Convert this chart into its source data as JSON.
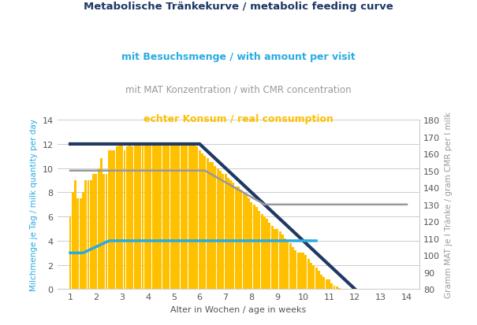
{
  "title_line1": "Metabolische Tränkekurve / metabolic feeding curve",
  "title_line2": "mit Besuchsmenge / with amount per visit",
  "title_line3": "mit MAT Konzentration / with CMR concentration",
  "title_line4": "echter Konsum / real consumption",
  "title_line1_color": "#1f3864",
  "title_line2_color": "#29ABE2",
  "title_line3_color": "#999999",
  "title_line4_color": "#FFC000",
  "xlabel": "Alter in Wochen / age in weeks",
  "ylabel_left": "Milchmenge je Tag / milk quantity per day",
  "ylabel_right": "Gramm MAT je l Tränke / gram CMR per l milk",
  "xlim": [
    0.5,
    14.5
  ],
  "ylim_left": [
    0,
    14
  ],
  "ylim_right": [
    80,
    180
  ],
  "xticks": [
    1,
    2,
    3,
    4,
    5,
    6,
    7,
    8,
    9,
    10,
    11,
    12,
    13,
    14
  ],
  "yticks_left": [
    0,
    2,
    4,
    6,
    8,
    10,
    12,
    14
  ],
  "yticks_right": [
    80,
    90,
    100,
    110,
    120,
    130,
    140,
    150,
    160,
    170,
    180
  ],
  "bar_color": "#FFC000",
  "bar_width": 0.09,
  "bars": [
    [
      1.0,
      6.0
    ],
    [
      1.1,
      8.0
    ],
    [
      1.2,
      9.0
    ],
    [
      1.3,
      7.5
    ],
    [
      1.4,
      7.5
    ],
    [
      1.5,
      8.0
    ],
    [
      1.6,
      9.0
    ],
    [
      1.7,
      9.0
    ],
    [
      1.8,
      9.0
    ],
    [
      1.9,
      9.5
    ],
    [
      2.0,
      9.5
    ],
    [
      2.1,
      10.0
    ],
    [
      2.2,
      10.8
    ],
    [
      2.3,
      9.5
    ],
    [
      2.4,
      9.5
    ],
    [
      2.5,
      11.5
    ],
    [
      2.6,
      11.5
    ],
    [
      2.7,
      11.5
    ],
    [
      2.8,
      11.8
    ],
    [
      2.9,
      12.0
    ],
    [
      3.0,
      12.0
    ],
    [
      3.1,
      11.5
    ],
    [
      3.2,
      11.8
    ],
    [
      3.3,
      12.0
    ],
    [
      3.4,
      11.8
    ],
    [
      3.5,
      12.0
    ],
    [
      3.6,
      12.0
    ],
    [
      3.7,
      12.0
    ],
    [
      3.8,
      12.0
    ],
    [
      3.9,
      12.0
    ],
    [
      4.0,
      12.0
    ],
    [
      4.1,
      12.0
    ],
    [
      4.2,
      12.0
    ],
    [
      4.3,
      12.0
    ],
    [
      4.4,
      12.0
    ],
    [
      4.5,
      12.0
    ],
    [
      4.6,
      12.0
    ],
    [
      4.7,
      12.0
    ],
    [
      4.8,
      12.0
    ],
    [
      4.9,
      12.0
    ],
    [
      5.0,
      12.0
    ],
    [
      5.1,
      12.0
    ],
    [
      5.2,
      12.0
    ],
    [
      5.3,
      12.0
    ],
    [
      5.4,
      12.0
    ],
    [
      5.5,
      12.0
    ],
    [
      5.6,
      12.0
    ],
    [
      5.7,
      12.0
    ],
    [
      5.8,
      12.0
    ],
    [
      5.9,
      11.8
    ],
    [
      6.0,
      11.5
    ],
    [
      6.1,
      11.2
    ],
    [
      6.2,
      11.0
    ],
    [
      6.3,
      10.8
    ],
    [
      6.4,
      10.5
    ],
    [
      6.5,
      10.5
    ],
    [
      6.6,
      10.2
    ],
    [
      6.7,
      10.0
    ],
    [
      6.8,
      9.8
    ],
    [
      6.9,
      9.5
    ],
    [
      7.0,
      9.5
    ],
    [
      7.1,
      9.2
    ],
    [
      7.2,
      9.0
    ],
    [
      7.3,
      8.8
    ],
    [
      7.4,
      8.5
    ],
    [
      7.5,
      8.5
    ],
    [
      7.6,
      8.2
    ],
    [
      7.7,
      8.0
    ],
    [
      7.8,
      7.8
    ],
    [
      7.9,
      7.5
    ],
    [
      8.0,
      7.2
    ],
    [
      8.1,
      7.0
    ],
    [
      8.2,
      6.8
    ],
    [
      8.3,
      6.5
    ],
    [
      8.4,
      6.2
    ],
    [
      8.5,
      6.0
    ],
    [
      8.6,
      5.8
    ],
    [
      8.7,
      5.5
    ],
    [
      8.8,
      5.2
    ],
    [
      8.9,
      5.0
    ],
    [
      9.0,
      5.0
    ],
    [
      9.1,
      4.8
    ],
    [
      9.2,
      4.5
    ],
    [
      9.3,
      4.2
    ],
    [
      9.4,
      4.0
    ],
    [
      9.5,
      3.8
    ],
    [
      9.6,
      3.5
    ],
    [
      9.7,
      3.2
    ],
    [
      9.8,
      3.0
    ],
    [
      9.9,
      3.0
    ],
    [
      10.0,
      3.0
    ],
    [
      10.1,
      2.8
    ],
    [
      10.2,
      2.5
    ],
    [
      10.3,
      2.2
    ],
    [
      10.4,
      2.0
    ],
    [
      10.5,
      1.8
    ],
    [
      10.6,
      1.5
    ],
    [
      10.7,
      1.2
    ],
    [
      10.8,
      1.0
    ],
    [
      10.9,
      0.8
    ],
    [
      11.0,
      0.8
    ],
    [
      11.1,
      0.5
    ],
    [
      11.2,
      0.3
    ],
    [
      11.3,
      0.2
    ],
    [
      11.4,
      0.1
    ]
  ],
  "dark_blue_line_x": [
    1.0,
    6.0,
    12.0
  ],
  "dark_blue_line_y": [
    12.0,
    12.0,
    0.0
  ],
  "dark_blue_color": "#1f3864",
  "dark_blue_lw": 3.0,
  "cyan_line_x": [
    1.0,
    1.5,
    2.5,
    10.5
  ],
  "cyan_line_y": [
    3.0,
    3.0,
    4.0,
    4.0
  ],
  "cyan_color": "#29ABE2",
  "cyan_lw": 2.5,
  "gray_line_x": [
    1.0,
    1.5,
    6.2,
    8.5,
    14.0
  ],
  "gray_line_y": [
    9.8,
    9.8,
    9.8,
    7.0,
    7.0
  ],
  "gray_color": "#999999",
  "gray_lw": 1.8,
  "bg_color": "#ffffff",
  "grid_color": "#cccccc",
  "left_label_color": "#29ABE2",
  "right_label_color": "#999999"
}
